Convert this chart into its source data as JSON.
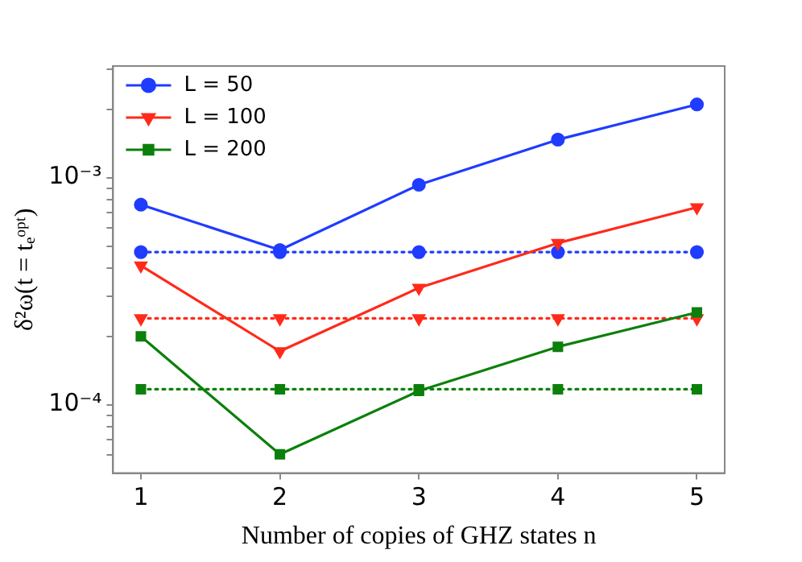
{
  "chart_data": {
    "type": "line",
    "xlabel": "Number of copies of GHZ states n",
    "ylabel": "δ²ω(t = tₑᵒᵖᵗ)",
    "x": [
      1,
      2,
      3,
      4,
      5
    ],
    "series": [
      {
        "name": "L = 50",
        "color": "#1f3cff",
        "values": [
          0.00076,
          0.00048,
          0.00093,
          0.00147,
          0.0021
        ],
        "marker": "circle",
        "line_style": "solid"
      },
      {
        "name": "L = 100",
        "color": "#ff2a1a",
        "values": [
          0.00041,
          0.000172,
          0.000327,
          0.000515,
          0.00074
        ],
        "marker": "triangle",
        "line_style": "solid"
      },
      {
        "name": "L = 200",
        "color": "#0b800b",
        "values": [
          0.0002,
          6.05e-05,
          0.000115,
          0.00018,
          0.000255
        ],
        "marker": "square",
        "line_style": "solid"
      },
      {
        "color": "#1f3cff",
        "values": [
          0.00047,
          0.00047,
          0.00047,
          0.00047,
          0.00047
        ],
        "marker": "circle",
        "line_style": "dotted"
      },
      {
        "color": "#ff2a1a",
        "values": [
          0.00024,
          0.00024,
          0.00024,
          0.00024,
          0.00024
        ],
        "marker": "triangle",
        "line_style": "dotted"
      },
      {
        "color": "#0b800b",
        "values": [
          0.000117,
          0.000117,
          0.000117,
          0.000117,
          0.000117
        ],
        "marker": "square",
        "line_style": "dotted"
      }
    ],
    "xlim": [
      0.8,
      5.2
    ],
    "xticks": [
      1,
      2,
      3,
      4,
      5
    ],
    "ylim": [
      5e-05,
      0.0031
    ],
    "yticks": [
      {
        "value": 6e-05,
        "label": null
      },
      {
        "value": 7e-05,
        "label": null
      },
      {
        "value": 8e-05,
        "label": null
      },
      {
        "value": 9e-05,
        "label": null
      },
      {
        "value": 0.0001,
        "label": "10⁻⁴"
      },
      {
        "value": 0.0002,
        "label": null
      },
      {
        "value": 0.0003,
        "label": null
      },
      {
        "value": 0.0004,
        "label": null
      },
      {
        "value": 0.0005,
        "label": null
      },
      {
        "value": 0.0006,
        "label": null
      },
      {
        "value": 0.0007,
        "label": null
      },
      {
        "value": 0.0008,
        "label": null
      },
      {
        "value": 0.0009,
        "label": null
      },
      {
        "value": 0.001,
        "label": "10⁻³"
      },
      {
        "value": 0.002,
        "label": null
      },
      {
        "value": 0.003,
        "label": null
      }
    ],
    "log": "y",
    "grid": false,
    "legend": "top left"
  }
}
